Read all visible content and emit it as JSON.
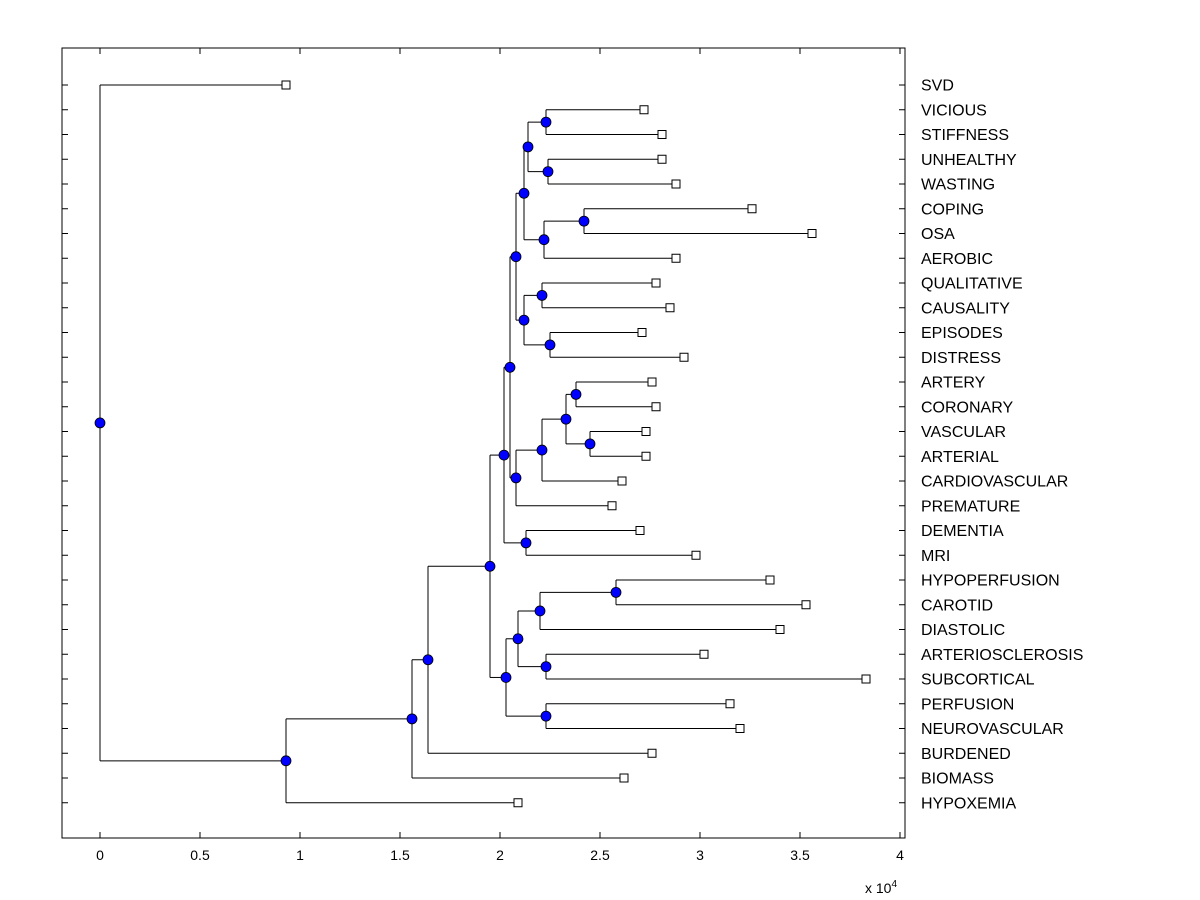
{
  "axis": {
    "x_ticks": [
      0,
      0.5,
      1,
      1.5,
      2,
      2.5,
      3,
      3.5,
      4
    ],
    "x_tick_labels": [
      "0",
      "0.5",
      "1",
      "1.5",
      "2",
      "2.5",
      "3",
      "3.5",
      "4"
    ],
    "xlim": [
      -0.19,
      4.03
    ],
    "multiplier_base": "x 10",
    "multiplier_exponent": "4"
  },
  "colors": {
    "node_fill": "#0000ff",
    "line": "#000000"
  },
  "icons": {
    "internal_node": "filled-circle-icon",
    "leaf_node": "hollow-square-icon"
  },
  "leaves": [
    {
      "label": "SVD",
      "x": 0.93
    },
    {
      "label": "VICIOUS",
      "x": 2.72
    },
    {
      "label": "STIFFNESS",
      "x": 2.81
    },
    {
      "label": "UNHEALTHY",
      "x": 2.81
    },
    {
      "label": "WASTING",
      "x": 2.88
    },
    {
      "label": "COPING",
      "x": 3.26
    },
    {
      "label": "OSA",
      "x": 3.56
    },
    {
      "label": "AEROBIC",
      "x": 2.88
    },
    {
      "label": "QUALITATIVE",
      "x": 2.78
    },
    {
      "label": "CAUSALITY",
      "x": 2.85
    },
    {
      "label": "EPISODES",
      "x": 2.71
    },
    {
      "label": "DISTRESS",
      "x": 2.92
    },
    {
      "label": "ARTERY",
      "x": 2.76
    },
    {
      "label": "CORONARY",
      "x": 2.78
    },
    {
      "label": "VASCULAR",
      "x": 2.73
    },
    {
      "label": "ARTERIAL",
      "x": 2.73
    },
    {
      "label": "CARDIOVASCULAR",
      "x": 2.61
    },
    {
      "label": "PREMATURE",
      "x": 2.56
    },
    {
      "label": "DEMENTIA",
      "x": 2.7
    },
    {
      "label": "MRI",
      "x": 2.98
    },
    {
      "label": "HYPOPERFUSION",
      "x": 3.35
    },
    {
      "label": "CAROTID",
      "x": 3.53
    },
    {
      "label": "DIASTOLIC",
      "x": 3.4
    },
    {
      "label": "ARTERIOSCLEROSIS",
      "x": 3.02
    },
    {
      "label": "SUBCORTICAL",
      "x": 3.83
    },
    {
      "label": "PERFUSION",
      "x": 3.15
    },
    {
      "label": "NEUROVASCULAR",
      "x": 3.2
    },
    {
      "label": "BURDENED",
      "x": 2.76
    },
    {
      "label": "BIOMASS",
      "x": 2.62
    },
    {
      "label": "HYPOXEMIA",
      "x": 2.09
    }
  ],
  "merges": [
    {
      "id": "n1",
      "x": 2.23,
      "children": [
        "L1",
        "L2"
      ]
    },
    {
      "id": "n2",
      "x": 2.24,
      "children": [
        "L3",
        "L4"
      ]
    },
    {
      "id": "n3",
      "x": 2.14,
      "children": [
        "n1",
        "n2"
      ]
    },
    {
      "id": "n4",
      "x": 2.42,
      "children": [
        "L5",
        "L6"
      ]
    },
    {
      "id": "n5",
      "x": 2.22,
      "children": [
        "n4",
        "L7"
      ]
    },
    {
      "id": "n6",
      "x": 2.12,
      "children": [
        "n3",
        "n5"
      ]
    },
    {
      "id": "n7",
      "x": 2.21,
      "children": [
        "L8",
        "L9"
      ]
    },
    {
      "id": "n8",
      "x": 2.25,
      "children": [
        "L10",
        "L11"
      ]
    },
    {
      "id": "n9",
      "x": 2.12,
      "children": [
        "n7",
        "n8"
      ]
    },
    {
      "id": "n10",
      "x": 2.08,
      "children": [
        "n6",
        "n9"
      ]
    },
    {
      "id": "n11",
      "x": 2.38,
      "children": [
        "L12",
        "L13"
      ]
    },
    {
      "id": "n12",
      "x": 2.45,
      "children": [
        "L14",
        "L15"
      ]
    },
    {
      "id": "n13",
      "x": 2.33,
      "children": [
        "n11",
        "n12"
      ]
    },
    {
      "id": "n14",
      "x": 2.21,
      "children": [
        "n13",
        "L16"
      ]
    },
    {
      "id": "n15",
      "x": 2.08,
      "children": [
        "n14",
        "L17"
      ]
    },
    {
      "id": "n16",
      "x": 2.05,
      "children": [
        "n10",
        "n15"
      ]
    },
    {
      "id": "n17",
      "x": 2.13,
      "children": [
        "L18",
        "L19"
      ]
    },
    {
      "id": "n18",
      "x": 2.02,
      "children": [
        "n16",
        "n17"
      ]
    },
    {
      "id": "n19",
      "x": 2.58,
      "children": [
        "L20",
        "L21"
      ]
    },
    {
      "id": "n20",
      "x": 2.2,
      "children": [
        "n19",
        "L22"
      ]
    },
    {
      "id": "n21",
      "x": 2.23,
      "children": [
        "L23",
        "L24"
      ]
    },
    {
      "id": "n22",
      "x": 2.09,
      "children": [
        "n20",
        "n21"
      ]
    },
    {
      "id": "n23",
      "x": 2.23,
      "children": [
        "L25",
        "L26"
      ]
    },
    {
      "id": "n24",
      "x": 2.03,
      "children": [
        "n22",
        "n23"
      ]
    },
    {
      "id": "n25",
      "x": 1.95,
      "children": [
        "n18",
        "n24"
      ]
    },
    {
      "id": "n26",
      "x": 1.64,
      "children": [
        "n25",
        "L27"
      ]
    },
    {
      "id": "n27",
      "x": 1.56,
      "children": [
        "n26",
        "L28"
      ]
    },
    {
      "id": "n28",
      "x": 0.93,
      "children": [
        "n27",
        "L29"
      ]
    },
    {
      "id": "n29",
      "x": 0.0,
      "children": [
        "L0",
        "n28"
      ]
    }
  ]
}
